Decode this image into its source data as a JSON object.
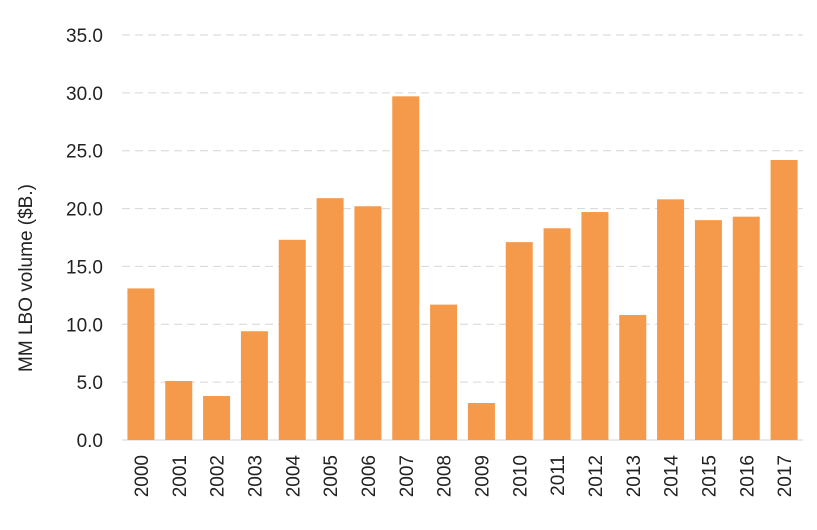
{
  "chart_data": {
    "type": "bar",
    "categories": [
      "2000",
      "2001",
      "2002",
      "2003",
      "2004",
      "2005",
      "2006",
      "2007",
      "2008",
      "2009",
      "2010",
      "2011",
      "2012",
      "2013",
      "2014",
      "2015",
      "2016",
      "2017"
    ],
    "values": [
      13.1,
      5.1,
      3.8,
      9.4,
      17.3,
      20.9,
      20.2,
      29.7,
      11.7,
      3.2,
      17.1,
      18.3,
      19.7,
      10.8,
      20.8,
      19.0,
      19.3,
      24.2
    ],
    "ylabel": "MM LBO volume ($B.)",
    "xlabel": "",
    "ylim": [
      0,
      35
    ],
    "yticks": [
      "0.0",
      "5.0",
      "10.0",
      "15.0",
      "20.0",
      "25.0",
      "30.0",
      "35.0"
    ],
    "grid": true,
    "bar_color": "#F59A4A"
  }
}
